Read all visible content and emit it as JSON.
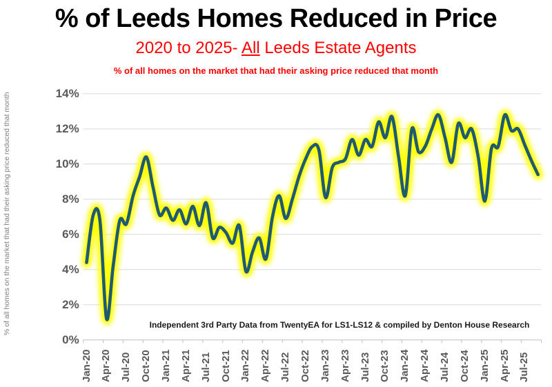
{
  "title": "% of Leeds Homes Reduced in Price",
  "subtitle": {
    "prefix": "2020 to 2025- ",
    "underlined": "All",
    "suffix": " Leeds Estate Agents"
  },
  "tagline": "% of all homes on the market that had their asking price reduced that month",
  "y_axis_title": "% of all homes on the market that had their asking price reduced that month",
  "annotation": "Independent 3rd Party Data from TwentyEA for LS1-LS12 & compiled by Denton House Research",
  "colors": {
    "line": "#1E5B73",
    "glow": "#FFFF00",
    "grid": "#D9D9D9",
    "axis": "#BFBFBF",
    "tick_labels": "#595959",
    "axis_title": "#7F7F7F",
    "accent_red": "#FF0000",
    "title_text": "#000000",
    "background": "#FFFFFF"
  },
  "chart_data": {
    "type": "line",
    "title": "% of Leeds Homes Reduced in Price",
    "subtitle": "2020 to 2025- All Leeds Estate Agents",
    "ylabel": "% of all homes on the market that had their asking price reduced that month",
    "ylim": [
      0,
      14
    ],
    "y_tick_step": 2,
    "y_tick_labels": [
      "0%",
      "2%",
      "4%",
      "6%",
      "8%",
      "10%",
      "12%",
      "14%"
    ],
    "grid": true,
    "legend": "none",
    "x_tick_label_every": 3,
    "x": [
      "Jan-20",
      "Feb-20",
      "Mar-20",
      "Apr-20",
      "May-20",
      "Jun-20",
      "Jul-20",
      "Aug-20",
      "Sep-20",
      "Oct-20",
      "Nov-20",
      "Dec-20",
      "Jan-21",
      "Feb-21",
      "Mar-21",
      "Apr-21",
      "May-21",
      "Jun-21",
      "Jul-21",
      "Aug-21",
      "Sep-21",
      "Oct-21",
      "Nov-21",
      "Dec-21",
      "Jan-22",
      "Feb-22",
      "Mar-22",
      "Apr-22",
      "May-22",
      "Jun-22",
      "Jul-22",
      "Aug-22",
      "Sep-22",
      "Oct-22",
      "Nov-22",
      "Dec-22",
      "Jan-23",
      "Feb-23",
      "Mar-23",
      "Apr-23",
      "May-23",
      "Jun-23",
      "Jul-23",
      "Aug-23",
      "Sep-23",
      "Oct-23",
      "Nov-23",
      "Dec-23",
      "Jan-24",
      "Feb-24",
      "Mar-24",
      "Apr-24",
      "May-24",
      "Jun-24",
      "Jul-24",
      "Aug-24",
      "Sep-24",
      "Oct-24",
      "Nov-24",
      "Dec-24",
      "Jan-25",
      "Feb-25",
      "Mar-25",
      "Apr-25",
      "May-25",
      "Jun-25",
      "Jul-25",
      "Aug-25",
      "Sep-25"
    ],
    "values": [
      4.4,
      7.1,
      6.8,
      1.2,
      4.2,
      6.8,
      6.6,
      8.2,
      9.3,
      10.4,
      8.7,
      7.1,
      7.5,
      6.8,
      7.4,
      6.6,
      7.6,
      6.5,
      7.8,
      5.8,
      6.4,
      6.1,
      5.5,
      6.5,
      3.9,
      5.0,
      5.8,
      4.6,
      7.0,
      8.2,
      6.9,
      8.0,
      9.3,
      10.3,
      11.0,
      10.8,
      8.1,
      9.8,
      10.1,
      10.3,
      11.4,
      10.5,
      11.4,
      11.0,
      12.4,
      11.5,
      12.7,
      10.4,
      8.2,
      12.0,
      10.7,
      11.0,
      12.0,
      12.8,
      11.5,
      10.1,
      12.3,
      11.5,
      12.0,
      10.4,
      7.9,
      10.9,
      11.0,
      12.8,
      11.9,
      12.0,
      11.1,
      10.2,
      9.4
    ],
    "line_color": "#1E5B73",
    "glow_color": "#FFFF00"
  }
}
